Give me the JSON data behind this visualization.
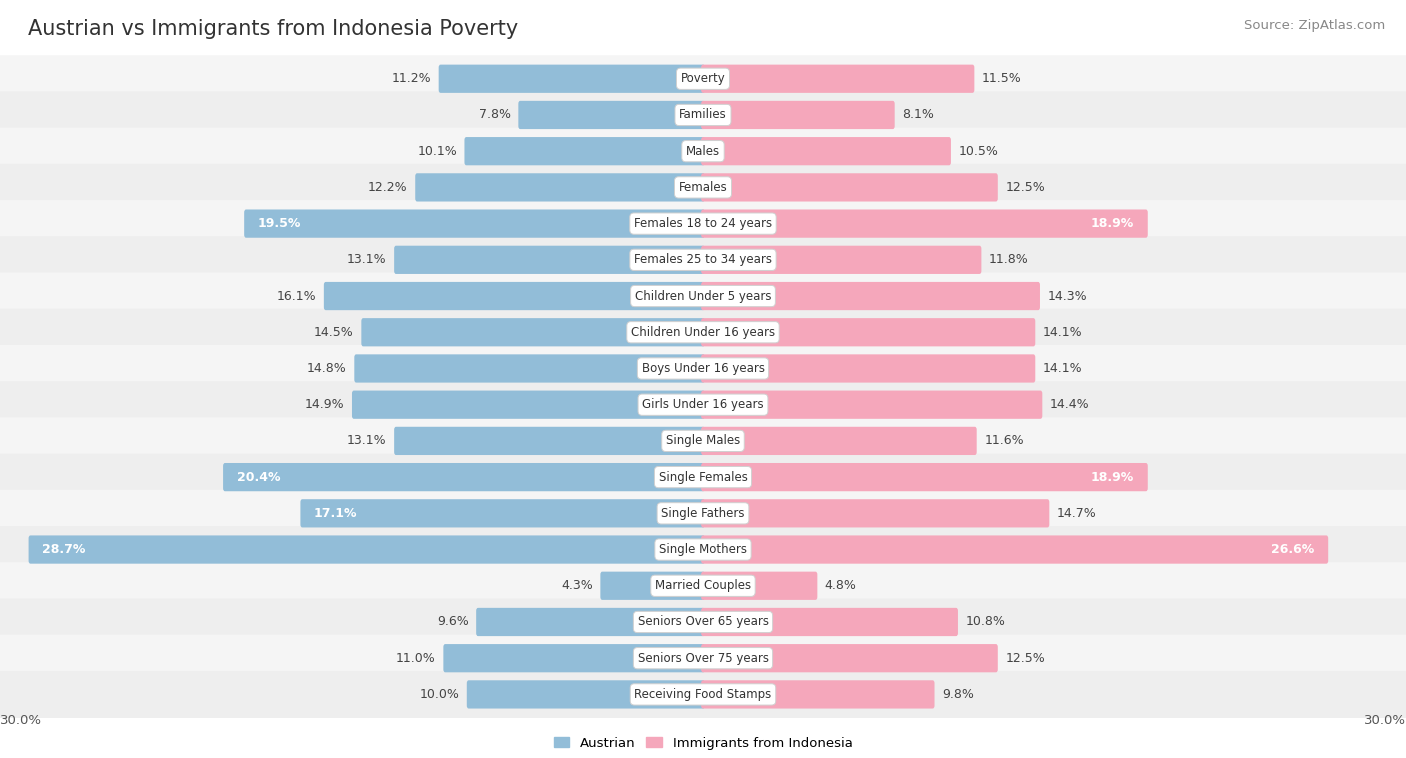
{
  "title": "Austrian vs Immigrants from Indonesia Poverty",
  "source": "Source: ZipAtlas.com",
  "categories": [
    "Poverty",
    "Families",
    "Males",
    "Females",
    "Females 18 to 24 years",
    "Females 25 to 34 years",
    "Children Under 5 years",
    "Children Under 16 years",
    "Boys Under 16 years",
    "Girls Under 16 years",
    "Single Males",
    "Single Females",
    "Single Fathers",
    "Single Mothers",
    "Married Couples",
    "Seniors Over 65 years",
    "Seniors Over 75 years",
    "Receiving Food Stamps"
  ],
  "austrian_values": [
    11.2,
    7.8,
    10.1,
    12.2,
    19.5,
    13.1,
    16.1,
    14.5,
    14.8,
    14.9,
    13.1,
    20.4,
    17.1,
    28.7,
    4.3,
    9.6,
    11.0,
    10.0
  ],
  "indonesia_values": [
    11.5,
    8.1,
    10.5,
    12.5,
    18.9,
    11.8,
    14.3,
    14.1,
    14.1,
    14.4,
    11.6,
    18.9,
    14.7,
    26.6,
    4.8,
    10.8,
    12.5,
    9.8
  ],
  "austrian_color": "#92bdd8",
  "indonesia_color": "#f5a7bb",
  "row_bg_color_light": "#f5f5f5",
  "row_bg_color_dark": "#eeeeee",
  "max_val": 30.0,
  "highlight_threshold": 17.0,
  "title_fontsize": 15,
  "source_fontsize": 9.5,
  "bar_fontsize": 9,
  "cat_fontsize": 8.5,
  "legend_label_austrian": "Austrian",
  "legend_label_indonesia": "Immigrants from Indonesia"
}
